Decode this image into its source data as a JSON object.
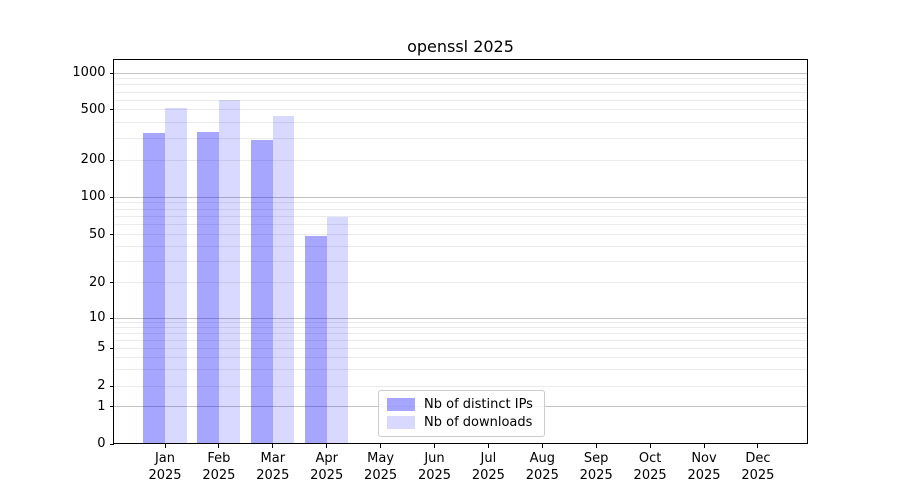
{
  "chart_data": {
    "type": "bar",
    "title": "openssl 2025",
    "categories": [
      "Jan",
      "Feb",
      "Mar",
      "Apr",
      "May",
      "Jun",
      "Jul",
      "Aug",
      "Sep",
      "Oct",
      "Nov",
      "Dec"
    ],
    "category_year": "2025",
    "series": [
      {
        "name": "Nb of distinct IPs",
        "color": "rgba(0,0,255,0.35)",
        "values": [
          330,
          335,
          290,
          49,
          0,
          0,
          0,
          0,
          0,
          0,
          0,
          0
        ]
      },
      {
        "name": "Nb of downloads",
        "color": "rgba(0,0,255,0.15)",
        "values": [
          520,
          600,
          450,
          70,
          0,
          0,
          0,
          0,
          0,
          0,
          0,
          0
        ]
      }
    ],
    "yticks": [
      0,
      1,
      2,
      5,
      10,
      20,
      50,
      100,
      200,
      500,
      1000
    ],
    "yscale": "symlog",
    "ylim": [
      0,
      1270
    ],
    "xlabel": "",
    "ylabel": "",
    "grid": true,
    "legend_position": "lower-center-left-inside"
  }
}
